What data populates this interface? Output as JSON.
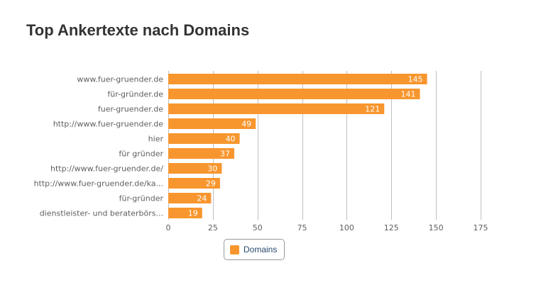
{
  "chart_data": {
    "type": "bar",
    "orientation": "horizontal",
    "title": "Top Ankertexte nach Domains",
    "categories": [
      "www.fuer-gruender.de",
      "für-gründer.de",
      "fuer-gruender.de",
      "http://www.fuer-gruender.de",
      "hier",
      "für gründer",
      "http://www.fuer-gruender.de/",
      "http://www.fuer-gruender.de/ka...",
      "für-gründer",
      "dienstleister- und beraterbörs..."
    ],
    "series": [
      {
        "name": "Domains",
        "values": [
          145,
          141,
          121,
          49,
          40,
          37,
          30,
          29,
          24,
          19
        ]
      }
    ],
    "x_ticks": [
      0,
      25,
      50,
      75,
      100,
      125,
      150,
      175
    ],
    "xlim": [
      0,
      175
    ],
    "grid": true,
    "legend_position": "bottom",
    "bar_color": "#f7962e",
    "grid_color": "#c0c0c0",
    "label_color": "#ffffff"
  }
}
